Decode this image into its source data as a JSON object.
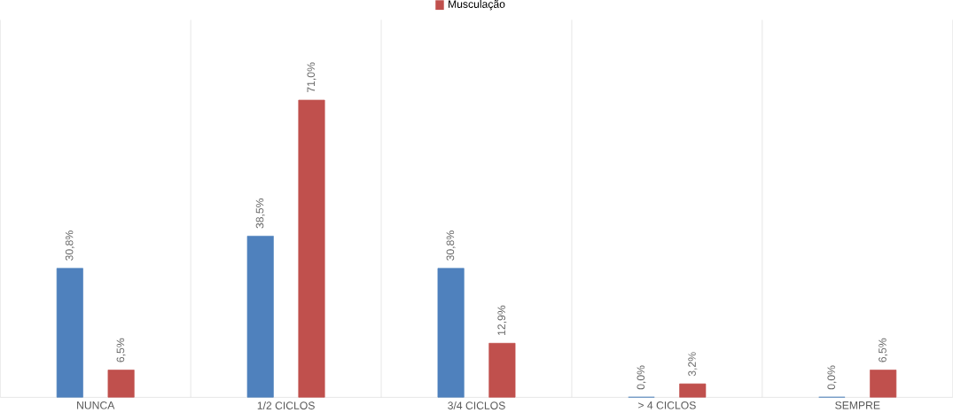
{
  "chart_data": {
    "type": "bar",
    "categories": [
      "NUNCA",
      "1/2 CICLOS",
      "3/4 CICLOS",
      "> 4 CICLOS",
      "SEMPRE"
    ],
    "series": [
      {
        "color": "#4f81bd",
        "values": [
          30.8,
          38.5,
          30.8,
          0,
          0
        ],
        "value_labels": [
          "30,8%",
          "38,5%",
          "30,8%",
          "0,0%",
          "0,0%"
        ]
      },
      {
        "name": "Musculação",
        "color": "#c0504d",
        "values": [
          6.5,
          71.0,
          12.9,
          3.2,
          6.5
        ],
        "value_labels": [
          "6,5%",
          "71,0%",
          "12,9%",
          "3,2%",
          "6,5%"
        ]
      }
    ],
    "grid": "x",
    "legend": "top"
  }
}
